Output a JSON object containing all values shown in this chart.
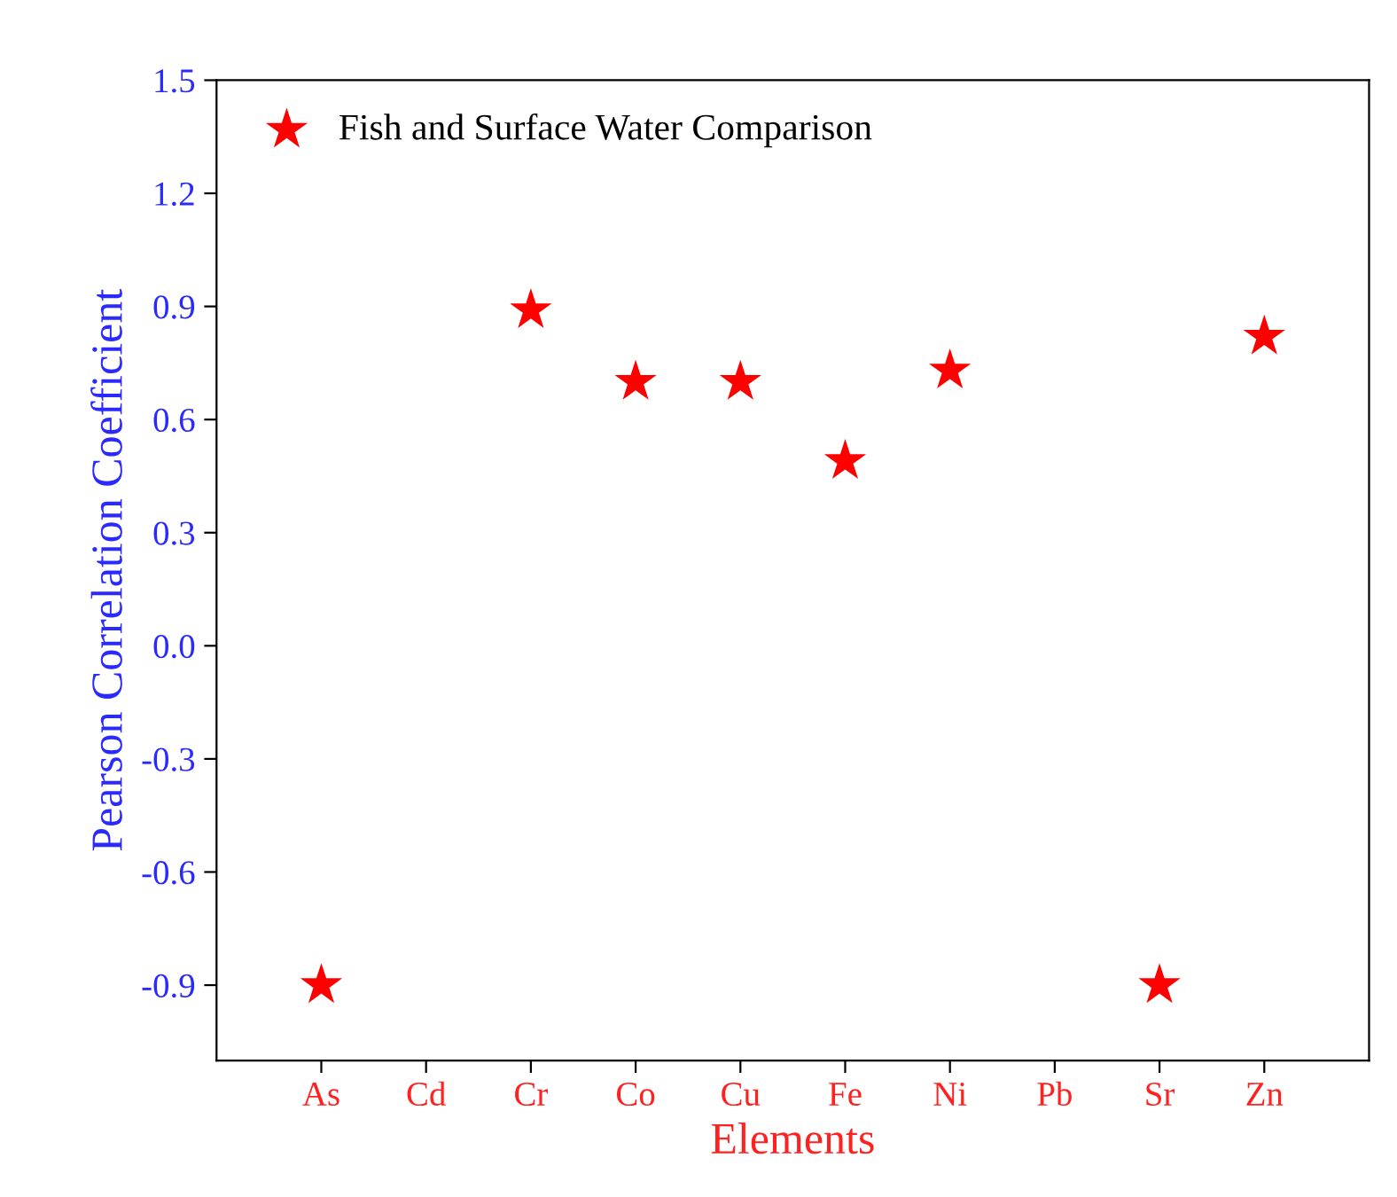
{
  "chart_data": {
    "type": "scatter",
    "xlabel": "Elements",
    "ylabel": "Pearson Correlation Coefficient",
    "categories": [
      "As",
      "Cd",
      "Cr",
      "Co",
      "Cu",
      "Fe",
      "Ni",
      "Pb",
      "Sr",
      "Zn"
    ],
    "series": [
      {
        "name": "Fish and Surface Water Comparison",
        "color": "#ff0000",
        "values": [
          -0.9,
          null,
          0.89,
          0.7,
          0.7,
          0.49,
          0.73,
          null,
          -0.9,
          0.82
        ]
      }
    ],
    "ylim": [
      -1.1,
      1.5
    ],
    "yticks": [
      {
        "value": -0.9,
        "label": "-0.9"
      },
      {
        "value": -0.6,
        "label": "-0.6"
      },
      {
        "value": -0.3,
        "label": "-0.3"
      },
      {
        "value": 0,
        "label": "0.0"
      },
      {
        "value": 0.3,
        "label": "0.3"
      },
      {
        "value": 0.6,
        "label": "0.6"
      },
      {
        "value": 0.9,
        "label": "0.9"
      },
      {
        "value": 1.2,
        "label": "1.2"
      },
      {
        "value": 1.5,
        "label": "1.5"
      }
    ],
    "marker": "star",
    "legend": "top left",
    "grid": false
  }
}
